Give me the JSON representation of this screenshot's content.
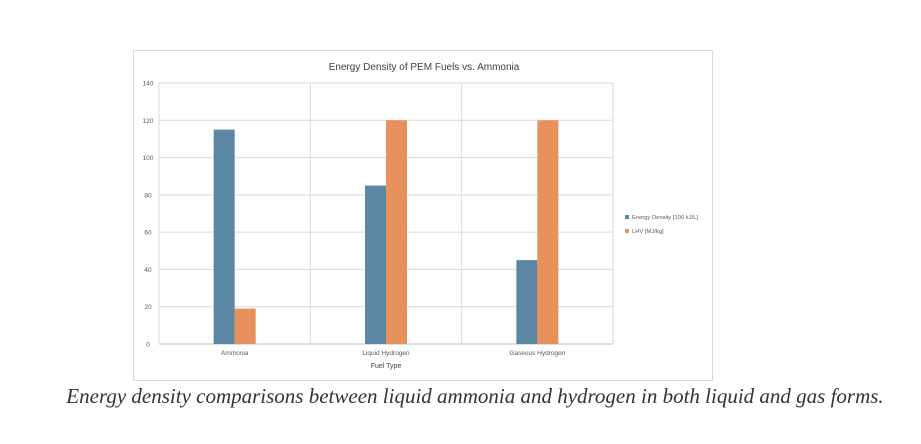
{
  "chart_data": {
    "type": "bar",
    "title": "Energy Density of PEM Fuels vs. Ammonia",
    "xlabel": "Fuel Type",
    "ylabel": "",
    "categories": [
      "Ammonia",
      "Liquid Hydrogen",
      "Gaseous Hydrogen"
    ],
    "series": [
      {
        "name": "Energy Density [100 kJ/L]",
        "values": [
          115,
          85,
          45
        ],
        "color": "#5b87a4"
      },
      {
        "name": "LHV [MJ/kg]",
        "values": [
          19,
          120,
          120
        ],
        "color": "#e8915c"
      }
    ],
    "ylim": [
      0,
      140
    ],
    "yticks": [
      "0",
      "20",
      "40",
      "60",
      "80",
      "100",
      "120",
      "140"
    ],
    "grid": true,
    "legend_position": "right"
  },
  "caption": "Energy density comparisons between liquid ammonia and hydrogen in both liquid and gas forms."
}
